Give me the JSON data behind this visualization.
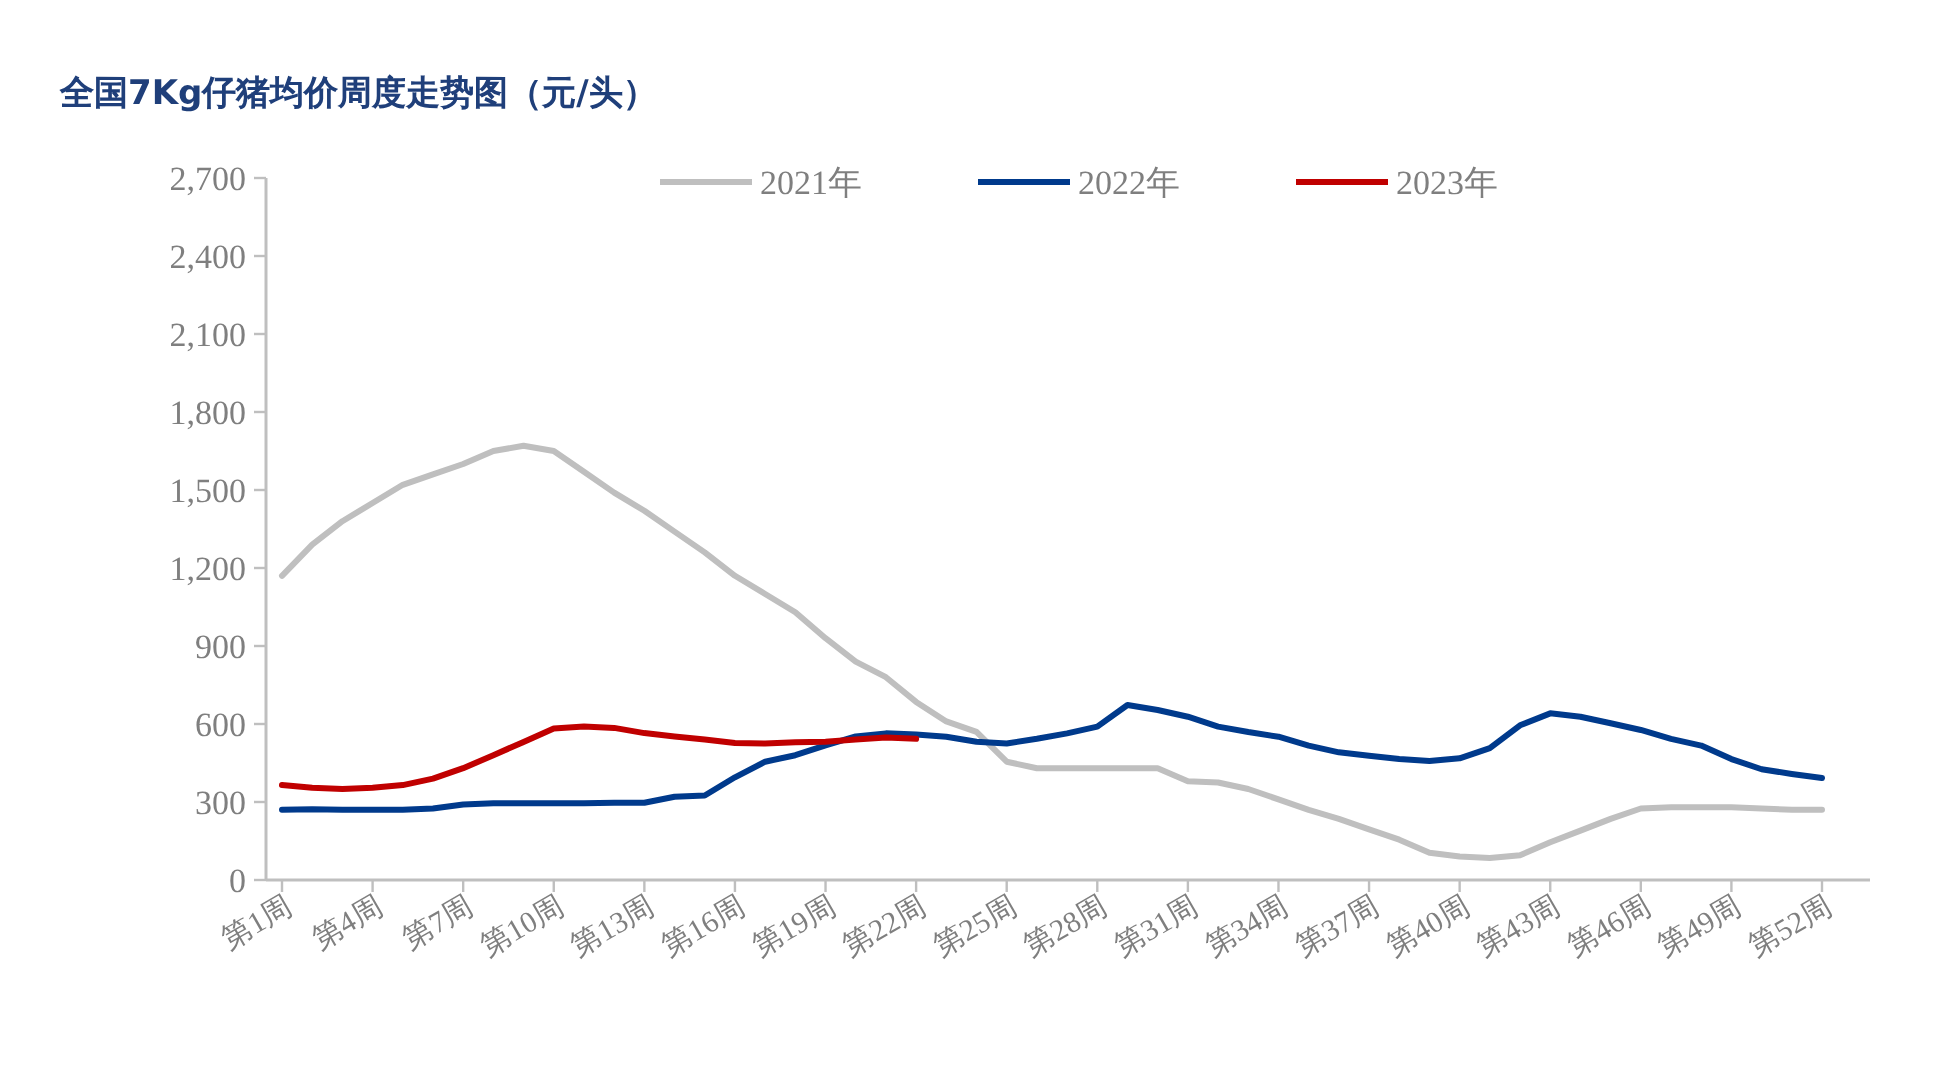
{
  "chart_data": {
    "type": "line",
    "title": "全国7Kg仔猪均价周度走势图（元/头）",
    "categories": [
      "第1周",
      null,
      null,
      "第4周",
      null,
      null,
      "第7周",
      null,
      null,
      "第10周",
      null,
      null,
      "第13周",
      null,
      null,
      "第16周",
      null,
      null,
      "第19周",
      null,
      null,
      "第22周",
      null,
      null,
      "第25周",
      null,
      null,
      "第28周",
      null,
      null,
      "第31周",
      null,
      null,
      "第34周",
      null,
      null,
      "第37周",
      null,
      null,
      "第40周",
      null,
      null,
      "第43周",
      null,
      null,
      "第46周",
      null,
      null,
      "第49周",
      null,
      null,
      "第52周"
    ],
    "series": [
      {
        "name": "2021年",
        "color": "#bfbfbf",
        "values": [
          1170,
          1290,
          1380,
          1450,
          1520,
          1560,
          1600,
          1650,
          1670,
          1650,
          1570,
          1490,
          1420,
          1340,
          1260,
          1170,
          1100,
          1030,
          930,
          840,
          780,
          685,
          610,
          570,
          455,
          430,
          430,
          430,
          430,
          430,
          380,
          375,
          350,
          310,
          270,
          235,
          195,
          155,
          105,
          90,
          85,
          95,
          145,
          190,
          235,
          275,
          280,
          280,
          280,
          275,
          270,
          270
        ]
      },
      {
        "name": "2022年",
        "color": "#003a8c",
        "values": [
          270,
          272,
          270,
          270,
          270,
          275,
          290,
          295,
          295,
          295,
          295,
          297,
          297,
          320,
          325,
          395,
          455,
          480,
          518,
          552,
          564,
          560,
          551,
          532,
          525,
          543,
          564,
          590,
          673,
          654,
          628,
          590,
          569,
          551,
          517,
          491,
          478,
          465,
          458,
          468,
          507,
          595,
          641,
          628,
          603,
          577,
          543,
          517,
          465,
          426,
          408,
          392
        ]
      },
      {
        "name": "2023年",
        "color": "#c00000",
        "values": [
          365,
          355,
          350,
          355,
          365,
          390,
          430,
          480,
          531,
          583,
          590,
          585,
          565,
          552,
          540,
          527,
          525,
          530,
          532,
          540,
          548,
          543,
          null,
          null,
          null,
          null,
          null,
          null,
          null,
          null,
          null,
          null,
          null,
          null,
          null,
          null,
          null,
          null,
          null,
          null,
          null,
          null,
          null,
          null,
          null,
          null,
          null,
          null,
          null,
          null,
          null,
          null
        ]
      }
    ],
    "ylim": [
      0,
      2700
    ],
    "yticks": [
      0,
      300,
      600,
      900,
      {
        "value": 1200,
        "label": "1,200"
      },
      {
        "value": 1500,
        "label": "1,500"
      },
      {
        "value": 1800,
        "label": "1,800"
      },
      {
        "value": 2100,
        "label": "2,100"
      },
      {
        "value": 2400,
        "label": "2,400"
      },
      {
        "value": 2700,
        "label": "2,700"
      }
    ],
    "legend": "top"
  }
}
